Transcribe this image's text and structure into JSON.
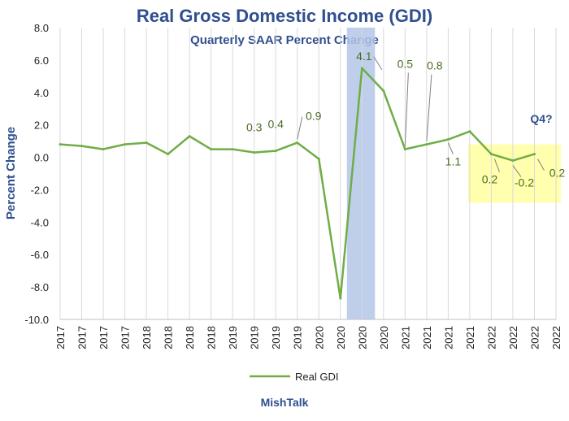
{
  "chart_data": {
    "type": "line",
    "title": "Real Gross Domestic Income (GDI)",
    "subtitle": "Quarterly SAAR Percent Change",
    "ylabel": "Percent Change",
    "xlabel": "",
    "ylim": [
      -10,
      8
    ],
    "yticks": [
      "8.0",
      "6.0",
      "4.0",
      "2.0",
      "0.0",
      "-2.0",
      "-4.0",
      "-6.0",
      "-8.0",
      "-10.0"
    ],
    "ytick_values": [
      8,
      6,
      4,
      2,
      0,
      -2,
      -4,
      -6,
      -8,
      -10
    ],
    "categories": [
      "2017",
      "2017",
      "2017",
      "2017",
      "2018",
      "2018",
      "2018",
      "2018",
      "2019",
      "2019",
      "2019",
      "2019",
      "2020",
      "2020",
      "2020",
      "2020",
      "2021",
      "2021",
      "2021",
      "2021",
      "2022",
      "2022",
      "2022",
      "2022"
    ],
    "grid": "vertical",
    "legend_position": "bottom",
    "series": [
      {
        "name": "Real GDI",
        "color": "#70ad47",
        "values": [
          0.8,
          0.7,
          0.5,
          0.8,
          0.9,
          0.2,
          1.3,
          0.5,
          0.5,
          0.3,
          0.4,
          0.9,
          -0.1,
          -8.7,
          5.5,
          4.1,
          0.5,
          0.8,
          1.1,
          1.6,
          0.2,
          -0.2,
          0.2,
          null
        ]
      }
    ],
    "data_labels": [
      {
        "index": 9,
        "text": "0.3"
      },
      {
        "index": 10,
        "text": "0.4"
      },
      {
        "index": 11,
        "text": "0.9"
      },
      {
        "index": 15,
        "text": "4.1"
      },
      {
        "index": 16,
        "text": "0.5"
      },
      {
        "index": 17,
        "text": "0.8"
      },
      {
        "index": 18,
        "text": "1.1"
      },
      {
        "index": 20,
        "text": "0.2"
      },
      {
        "index": 21,
        "text": "-0.2"
      },
      {
        "index": 22,
        "text": "0.2"
      }
    ],
    "annotations": {
      "q4_text": "Q4?",
      "recession_band": {
        "from_index": 13,
        "to_index": 14,
        "color": "#b4c7e7"
      },
      "highlight_band": {
        "from_index": 19,
        "to_index": 23,
        "ymin": -2.8,
        "ymax": 0.8,
        "color": "#ffff99"
      }
    },
    "source": "MishTalk"
  }
}
